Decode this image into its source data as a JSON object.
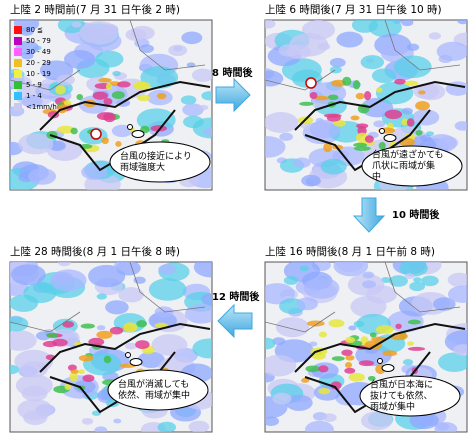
{
  "panels": [
    {
      "title": "上陸 2 時間前(7 月 31 日午後 2 時)",
      "note": [
        "台風の接近により",
        "雨域強度大"
      ]
    },
    {
      "title": "上陸 6 時間後(7 月 31 日午後 10 時)",
      "note": [
        "台風が遠ざかても",
        "爪状に雨域が集",
        "中"
      ]
    },
    {
      "title": "上陸 16 時間後(8 月 1 日午前 8 時)",
      "note": [
        "台風が日本海に",
        "抜けても依然、",
        "雨域が集中"
      ]
    },
    {
      "title": "上陸 28 時間後(8 月 1 日午後 8 時)",
      "note": [
        "台風が消滅しても",
        "依然、雨域が集中"
      ]
    }
  ],
  "arrows": [
    {
      "label": "8 時間後"
    },
    {
      "label": "10 時間後"
    },
    {
      "label": "12 時間後"
    }
  ],
  "legend": [
    "80 ≦",
    "50 - 79",
    "30 - 49",
    "20 - 29",
    "10 - 19",
    "5 - 9",
    "1 - 4",
    "<1mm/h"
  ]
}
